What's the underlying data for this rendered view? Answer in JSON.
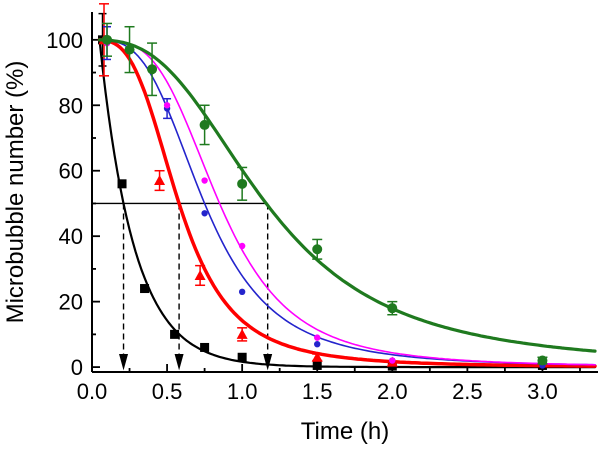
{
  "chart_data": {
    "type": "line",
    "title": "",
    "xlabel": "Time (h)",
    "ylabel": "Microbubble number (%)",
    "xlim": [
      0,
      3.37
    ],
    "ylim": [
      -1.5,
      108.5
    ],
    "x_ticks": [
      0.0,
      0.5,
      1.0,
      1.5,
      2.0,
      2.5,
      3.0
    ],
    "x_tick_labels": [
      "0.0",
      "0.5",
      "1.0",
      "1.5",
      "2.0",
      "2.5",
      "3.0"
    ],
    "y_ticks": [
      0,
      20,
      40,
      60,
      80,
      100
    ],
    "y_tick_labels": [
      "0",
      "20",
      "40",
      "60",
      "80",
      "100"
    ],
    "grid": false,
    "legend": "none",
    "axis_color": "#000000",
    "background": "#ffffff",
    "half_life_markers": {
      "y": 50,
      "times": [
        0.21,
        0.58,
        1.17
      ],
      "style": "dashed-arrow-down"
    },
    "series": [
      {
        "name": "black-squares",
        "color": "#000000",
        "marker": "square",
        "line_width": 2.2,
        "cap": 4,
        "fit": {
          "type": "exp",
          "t0": 0.05,
          "halflife": 0.16
        },
        "points": [
          {
            "x": 0.07,
            "y": 100,
            "err": 8
          },
          {
            "x": 0.2,
            "y": 56
          },
          {
            "x": 0.35,
            "y": 24
          },
          {
            "x": 0.55,
            "y": 10
          },
          {
            "x": 0.75,
            "y": 6
          },
          {
            "x": 1.0,
            "y": 3
          },
          {
            "x": 1.5,
            "y": 0.5
          },
          {
            "x": 2.0,
            "y": 0.3
          },
          {
            "x": 3.0,
            "y": 0.5
          }
        ]
      },
      {
        "name": "red-triangles",
        "color": "#ff0000",
        "marker": "triangle",
        "line_width": 3.5,
        "cap": 5,
        "fit": {
          "type": "hill",
          "t50": 0.58,
          "n": 3.3
        },
        "points": [
          {
            "x": 0.08,
            "y": 100,
            "err": 11
          },
          {
            "x": 0.45,
            "y": 57,
            "err": 3
          },
          {
            "x": 0.72,
            "y": 28,
            "err": 3
          },
          {
            "x": 1.0,
            "y": 10,
            "err": 2
          },
          {
            "x": 1.5,
            "y": 3,
            "err": 1
          },
          {
            "x": 2.0,
            "y": 1.5
          }
        ]
      },
      {
        "name": "blue-circles",
        "color": "#2424cc",
        "marker": "circle-small",
        "line_width": 1.6,
        "cap": 4,
        "fit": {
          "type": "hill",
          "t50": 0.75,
          "n": 3.3
        },
        "points": [
          {
            "x": 0.1,
            "y": 99,
            "err": 5
          },
          {
            "x": 0.5,
            "y": 79,
            "err": 3
          },
          {
            "x": 0.75,
            "y": 47
          },
          {
            "x": 1.0,
            "y": 23
          },
          {
            "x": 1.5,
            "y": 7
          },
          {
            "x": 2.0,
            "y": 2
          },
          {
            "x": 3.0,
            "y": 0.5
          }
        ]
      },
      {
        "name": "magenta-circles",
        "color": "#ff00ff",
        "marker": "circle-small",
        "line_width": 1.6,
        "cap": 4,
        "fit": {
          "type": "hill",
          "t50": 0.85,
          "n": 3.6
        },
        "points": [
          {
            "x": 0.1,
            "y": 99
          },
          {
            "x": 0.5,
            "y": 80
          },
          {
            "x": 0.75,
            "y": 57
          },
          {
            "x": 1.0,
            "y": 37
          },
          {
            "x": 1.5,
            "y": 9
          },
          {
            "x": 2.0,
            "y": 2
          }
        ]
      },
      {
        "name": "green-circles",
        "color": "#1f7a1f",
        "marker": "circle-large",
        "line_width": 3.2,
        "cap": 5,
        "fit": {
          "type": "hill",
          "t50": 1.16,
          "n": 2.8
        },
        "points": [
          {
            "x": 0.1,
            "y": 100,
            "err": 5
          },
          {
            "x": 0.25,
            "y": 97,
            "err": 7
          },
          {
            "x": 0.4,
            "y": 91,
            "err": 8
          },
          {
            "x": 0.75,
            "y": 74,
            "err": 6
          },
          {
            "x": 1.0,
            "y": 56,
            "err": 5
          },
          {
            "x": 1.5,
            "y": 36,
            "err": 3
          },
          {
            "x": 2.0,
            "y": 18,
            "err": 2
          },
          {
            "x": 3.0,
            "y": 2,
            "err": 1
          }
        ]
      }
    ]
  }
}
